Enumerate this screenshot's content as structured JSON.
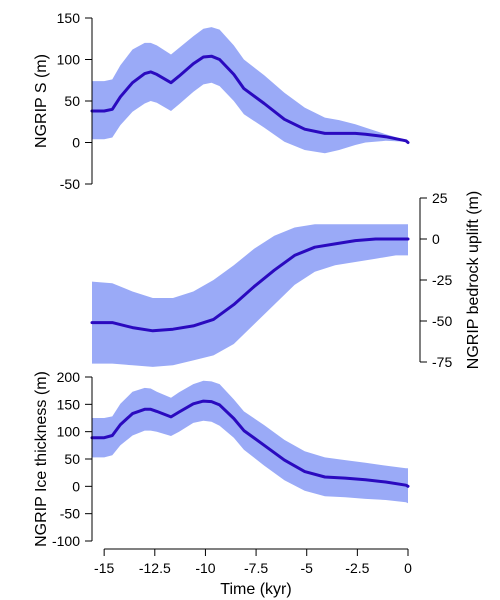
{
  "colors": {
    "band": "#9aaaf7",
    "line": "#2a0abf",
    "axis": "#000000"
  },
  "chart_data": [
    {
      "type": "line",
      "id": "panel-s",
      "ylabel": "NGRIP S (m)",
      "yaxis_side": "left",
      "ylim": [
        -50,
        150
      ],
      "yticks": [
        -50,
        0,
        50,
        100,
        150
      ],
      "ytick_labels": [
        "-50",
        "0",
        "50",
        "100",
        "150"
      ],
      "x": [
        -15.6,
        -15.0,
        -14.6,
        -14.2,
        -13.6,
        -13.0,
        -12.7,
        -12.4,
        -11.7,
        -11.3,
        -10.6,
        -10.1,
        -9.7,
        -9.3,
        -8.6,
        -8.1,
        -7.1,
        -6.1,
        -5.1,
        -4.1,
        -3.4,
        -2.6,
        -2.1,
        -1.1,
        -0.1,
        0.0
      ],
      "series": [
        {
          "values": [
            38,
            38,
            40,
            55,
            72,
            83,
            85,
            82,
            72,
            80,
            95,
            103,
            104,
            100,
            82,
            65,
            47,
            28,
            16,
            11,
            11,
            11,
            10,
            7,
            2,
            0
          ],
          "upper": [
            74,
            74,
            76,
            93,
            112,
            120,
            120,
            117,
            106,
            114,
            128,
            137,
            139,
            136,
            117,
            100,
            81,
            60,
            42,
            30,
            27,
            22,
            18,
            10,
            3,
            0
          ],
          "lower": [
            4,
            4,
            6,
            21,
            37,
            47,
            50,
            48,
            38,
            46,
            61,
            70,
            72,
            68,
            50,
            34,
            18,
            1,
            -9,
            -13,
            -9,
            -3,
            0,
            2,
            1,
            0
          ]
        }
      ]
    },
    {
      "type": "line",
      "id": "panel-uplift",
      "ylabel": "NGRIP bedrock uplift (m)",
      "yaxis_side": "right",
      "ylim": [
        -75,
        25
      ],
      "yticks": [
        -75,
        -50,
        -25,
        0,
        25
      ],
      "ytick_labels": [
        "-75",
        "-50",
        "-25",
        "0",
        "25"
      ],
      "x": [
        -15.6,
        -14.6,
        -13.6,
        -12.6,
        -11.6,
        -10.6,
        -9.6,
        -8.6,
        -7.6,
        -6.6,
        -5.6,
        -4.6,
        -3.6,
        -2.6,
        -1.6,
        -0.6,
        0.0
      ],
      "series": [
        {
          "values": [
            -51,
            -51,
            -54,
            -56,
            -55,
            -53,
            -49,
            -40,
            -29,
            -19,
            -10,
            -5,
            -3,
            -1,
            0,
            0,
            0
          ],
          "upper": [
            -26,
            -27,
            -32,
            -36,
            -36,
            -32,
            -25,
            -16,
            -6,
            2,
            7,
            9,
            9,
            9,
            9,
            9,
            9
          ],
          "lower": [
            -76,
            -76,
            -77,
            -78,
            -77,
            -74,
            -71,
            -64,
            -52,
            -40,
            -28,
            -20,
            -16,
            -14,
            -12,
            -10,
            -10
          ]
        }
      ]
    },
    {
      "type": "line",
      "id": "panel-thickness",
      "ylabel": "NGRIP Ice thickness (m)",
      "yaxis_side": "left",
      "xlabel": "Time (kyr)",
      "ylim": [
        -100,
        200
      ],
      "yticks": [
        -100,
        -50,
        0,
        50,
        100,
        150,
        200
      ],
      "ytick_labels": [
        "-100",
        "-50",
        "0",
        "50",
        "100",
        "150",
        "200"
      ],
      "xlim": [
        -15.6,
        0
      ],
      "xticks": [
        -15,
        -12.5,
        -10,
        -7.5,
        -5,
        -2.5,
        0
      ],
      "xtick_labels": [
        "-15",
        "-12.5",
        "-10",
        "-7.5",
        "-5",
        "-2.5",
        "0"
      ],
      "x": [
        -15.6,
        -15.0,
        -14.6,
        -14.2,
        -13.6,
        -13.0,
        -12.7,
        -12.4,
        -11.7,
        -11.3,
        -10.6,
        -10.1,
        -9.7,
        -9.3,
        -8.6,
        -8.1,
        -7.1,
        -6.1,
        -5.1,
        -4.1,
        -3.1,
        -2.1,
        -1.1,
        -0.1,
        0.0
      ],
      "series": [
        {
          "values": [
            89,
            89,
            93,
            113,
            133,
            141,
            141,
            137,
            127,
            136,
            151,
            156,
            155,
            149,
            124,
            102,
            75,
            48,
            27,
            17,
            15,
            12,
            8,
            2,
            0
          ],
          "upper": [
            125,
            125,
            128,
            151,
            173,
            180,
            179,
            173,
            162,
            172,
            187,
            193,
            192,
            187,
            159,
            137,
            112,
            85,
            64,
            53,
            48,
            43,
            38,
            33,
            33
          ],
          "lower": [
            53,
            53,
            57,
            75,
            93,
            102,
            102,
            100,
            92,
            100,
            116,
            120,
            118,
            111,
            89,
            67,
            38,
            11,
            -8,
            -18,
            -20,
            -23,
            -25,
            -29,
            -31
          ]
        }
      ]
    }
  ]
}
